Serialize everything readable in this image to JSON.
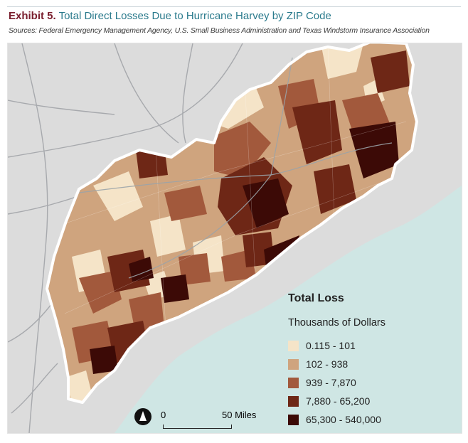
{
  "header": {
    "exhibit": "Exhibit 5.",
    "title": "Total Direct Losses Due to Hurricane Harvey by ZIP Code",
    "sources": "Sources: Federal Emergency Management Agency, U.S. Small Business Administration and Texas Windstorm Insurance Association"
  },
  "legend": {
    "title": "Total Loss",
    "subtitle": "Thousands of Dollars",
    "items": [
      {
        "label": "0.115 - 101",
        "color": "#f5e4c8"
      },
      {
        "label": "102 - 938",
        "color": "#cfa47e"
      },
      {
        "label": "939 - 7,870",
        "color": "#a2593c"
      },
      {
        "label": "7,880 - 65,200",
        "color": "#6e2716"
      },
      {
        "label": "65,300 - 540,000",
        "color": "#3c0a06"
      }
    ]
  },
  "scale": {
    "start": "0",
    "end": "50 Miles"
  },
  "colors": {
    "land": "#dcdcdc",
    "water": "#cfe6e4",
    "roads": "#a7a9ad",
    "outline": "#ffffff"
  }
}
